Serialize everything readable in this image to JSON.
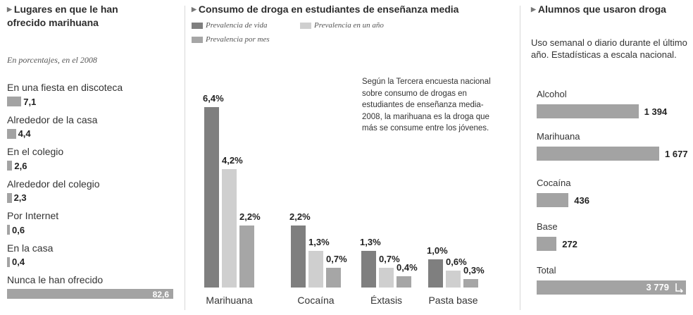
{
  "panel1": {
    "title_line1": "Lugares en que le han",
    "title_line2": "ofrecido marihuana",
    "subtitle": "En porcentajes, en el 2008",
    "chart_data": {
      "type": "bar",
      "orientation": "horizontal",
      "categories": [
        "En una fiesta en discoteca",
        "Alrededor de la casa",
        "En el colegio",
        "Alrededor del colegio",
        "Por Internet",
        "En la casa",
        "Nunca le han ofrecido"
      ],
      "values": [
        7.1,
        4.4,
        2.6,
        2.3,
        0.6,
        0.4,
        82.6
      ],
      "value_labels": [
        "7,1",
        "4,4",
        "2,6",
        "2,3",
        "0,6",
        "0,4",
        "82,6"
      ],
      "bar_color": "#a3a3a3"
    }
  },
  "panel2": {
    "title": "Consumo de droga en estudiantes de enseñanza media",
    "note": "Según la Tercera encuesta nacional sobre consumo de drogas en estudiantes de enseñanza media-2008, la marihuana es la droga que más se consume entre los jóvenes.",
    "chart_data": {
      "type": "bar",
      "categories": [
        "Marihuana",
        "Cocaína",
        "Éxtasis",
        "Pasta base"
      ],
      "series": [
        {
          "name": "Prevalencia de vida",
          "values": [
            6.4,
            2.2,
            1.3,
            1.0
          ],
          "labels": [
            "6,4%",
            "2,2%",
            "1,3%",
            "1,0%"
          ],
          "color": "#7f7f7f"
        },
        {
          "name": "Prevalencia en un año",
          "values": [
            4.2,
            1.3,
            0.7,
            0.6
          ],
          "labels": [
            "4,2%",
            "1,3%",
            "0,7%",
            "0,6%"
          ],
          "color": "#cfcfcf"
        },
        {
          "name": "Prevalencia por mes",
          "values": [
            2.2,
            0.7,
            0.4,
            0.3
          ],
          "labels": [
            "2,2%",
            "0,7%",
            "0,4%",
            "0,3%"
          ],
          "color": "#a6a6a6"
        }
      ]
    }
  },
  "panel3": {
    "title": "Alumnos que usaron droga",
    "description": "Uso semanal o diario durante el último año. Estadísticas a escala nacional.",
    "chart_data": {
      "type": "bar",
      "orientation": "horizontal",
      "categories": [
        "Alcohol",
        "Marihuana",
        "Cocaína",
        "Base",
        "Total"
      ],
      "values": [
        1394,
        1677,
        436,
        272,
        3779
      ],
      "value_labels": [
        "1 394",
        "1 677",
        "436",
        "272",
        "3 779"
      ],
      "bar_color": "#a3a3a3"
    }
  }
}
